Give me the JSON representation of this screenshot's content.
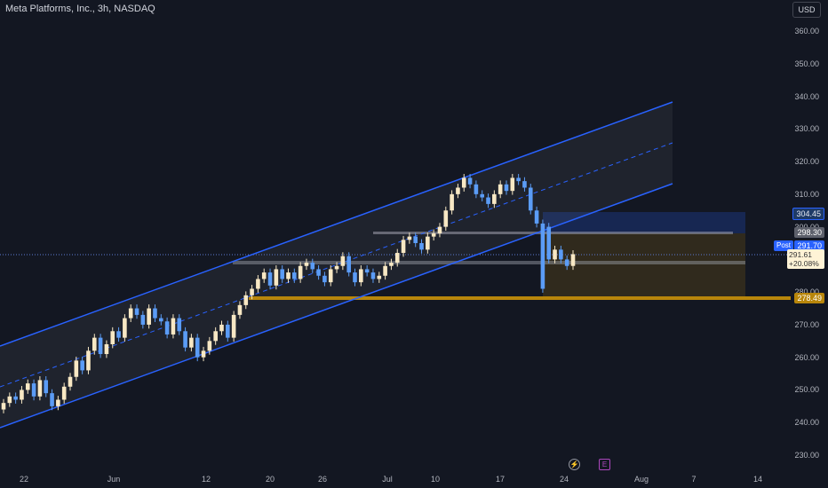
{
  "header": {
    "title": "Meta Platforms, Inc., 3h, NASDAQ",
    "currency_button": "USD"
  },
  "price_labels": {
    "upper_box": "304.45",
    "line_level": "298.30",
    "post_tag": "Post",
    "post_price": "291.70",
    "last_price": "291.61",
    "last_change": "+20.08%",
    "support": "278.49"
  },
  "event_icons": {
    "dividend": "dividend-icon",
    "earnings": "E"
  },
  "colors": {
    "background": "#131722",
    "up": "#f8e8c4",
    "down": "#5b9cf6",
    "channel": "#2962ff",
    "support": "#b8860b"
  },
  "chart_data": {
    "type": "candlestick",
    "title": "Meta Platforms, Inc., 3h, NASDAQ",
    "ylim": [
      222,
      368
    ],
    "y_ticks": [
      "360.00",
      "350.00",
      "340.00",
      "330.00",
      "320.00",
      "310.00",
      "300.00",
      "290.00",
      "280.00",
      "270.00",
      "260.00",
      "250.00",
      "240.00",
      "230.00"
    ],
    "x_ticks": [
      "22",
      "Jun",
      "12",
      "20",
      "26",
      "Jul",
      "10",
      "17",
      "24",
      "Aug",
      "7",
      "14"
    ],
    "close": [
      246,
      248,
      247,
      250,
      252,
      248,
      253,
      249,
      245,
      247,
      251,
      254,
      259,
      256,
      262,
      266,
      261,
      264,
      268,
      266,
      272,
      275,
      273,
      270,
      275,
      272,
      271,
      267,
      272,
      268,
      263,
      266,
      260,
      262,
      265,
      268,
      270,
      266,
      273,
      276,
      279,
      281,
      284,
      286,
      282,
      287,
      284,
      286,
      284,
      288,
      289,
      287,
      285,
      283,
      287,
      288,
      291,
      286,
      283,
      287,
      286,
      284,
      285,
      288,
      289,
      292,
      296,
      297,
      295,
      293,
      297,
      298,
      300,
      305,
      310,
      312,
      315,
      313,
      310,
      309,
      307,
      310,
      313,
      311,
      315,
      314,
      312,
      305,
      301,
      281,
      290,
      293,
      290,
      288,
      291.61
    ],
    "open": [
      244,
      246,
      248,
      247,
      250,
      252,
      248,
      253,
      249,
      245,
      247,
      251,
      254,
      259,
      256,
      262,
      266,
      261,
      264,
      268,
      266,
      272,
      275,
      273,
      270,
      275,
      272,
      271,
      267,
      272,
      268,
      263,
      266,
      260,
      262,
      265,
      268,
      270,
      266,
      273,
      276,
      279,
      281,
      284,
      286,
      282,
      287,
      284,
      286,
      284,
      288,
      289,
      287,
      285,
      283,
      287,
      288,
      291,
      286,
      283,
      287,
      286,
      284,
      285,
      288,
      289,
      292,
      296,
      297,
      295,
      293,
      297,
      298,
      300,
      305,
      310,
      312,
      315,
      313,
      310,
      309,
      307,
      310,
      313,
      311,
      315,
      314,
      312,
      305,
      301,
      300,
      290,
      293,
      290,
      288
    ],
    "annotations": {
      "upper_box_top": 304.45,
      "mid_level": 298.3,
      "support_level": 278.49,
      "prior_level": 289.3,
      "last": 291.61,
      "change_pct": "+20.08%"
    }
  }
}
